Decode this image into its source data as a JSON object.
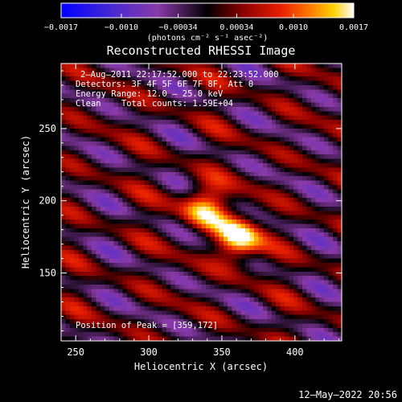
{
  "chart_data": {
    "type": "heatmap",
    "title": "Reconstructed RHESSI Image",
    "xlabel": "Heliocentric X (arcsec)",
    "ylabel": "Heliocentric Y (arcsec)",
    "xlim": [
      240,
      432
    ],
    "ylim": [
      103,
      295
    ],
    "x_ticks": [
      250,
      300,
      350,
      400
    ],
    "y_ticks": [
      150,
      200,
      250
    ],
    "colorbar": {
      "label": "(photons cm⁻² s⁻¹ asec⁻²)",
      "range": [
        -0.0017,
        0.0017
      ],
      "tick_values": [
        -0.0017,
        -0.001,
        -0.00034,
        0.00034,
        0.001,
        0.0017
      ],
      "tick_labels": [
        "−0.0017",
        "−0.0010",
        "−0.00034",
        "0.00034",
        "0.0010",
        "0.0017"
      ],
      "colors": [
        "#0000ff",
        "#5a30c8",
        "#8a3aa8",
        "#000000",
        "#8a0000",
        "#e81e00",
        "#ff7a00",
        "#ffd000",
        "#ffffff"
      ]
    },
    "annotations": {
      "time_range": "2–Aug–2011 22:17:52.000 to 22:23:52.000",
      "detectors": "Detectors: 3F 4F 5F 6F 7F 8F, Att 0",
      "energy_range": "Energy Range: 12.0 – 25.0 keV",
      "clean": "Clean    Total counts: 1.59E+04",
      "peak": "Position of Peak = [359,172]"
    },
    "peak_position": [
      359,
      172
    ],
    "sources": [
      {
        "x": 338,
        "y": 196,
        "amplitude": 0.0014
      },
      {
        "x": 361,
        "y": 173,
        "amplitude": 0.0017
      }
    ]
  },
  "timestamp": "12–May–2022 20:56"
}
